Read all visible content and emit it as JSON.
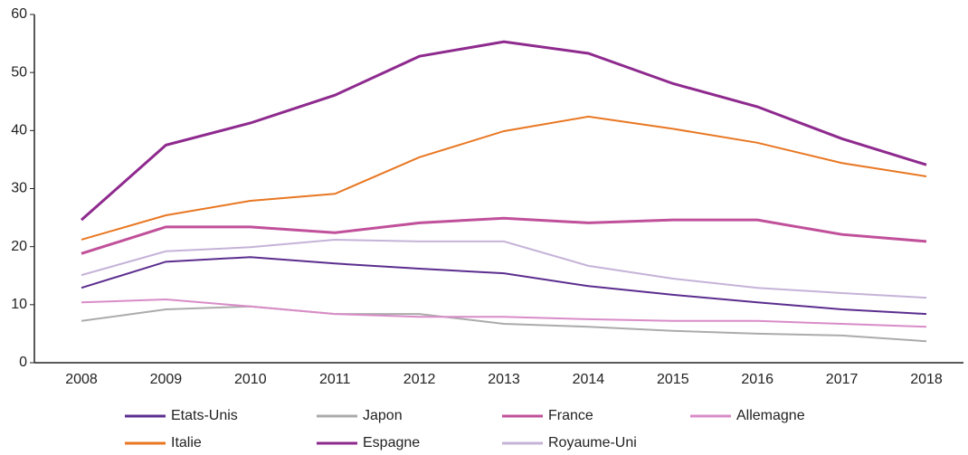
{
  "chart_data": {
    "type": "line",
    "categories": [
      "2008",
      "2009",
      "2010",
      "2011",
      "2012",
      "2013",
      "2014",
      "2015",
      "2016",
      "2017",
      "2018"
    ],
    "ylim": [
      0,
      60
    ],
    "yticks": [
      0,
      10,
      20,
      30,
      40,
      50,
      60
    ],
    "grid": false,
    "legend": "bottom",
    "series": [
      {
        "name": "Etats-Unis",
        "color": "#5b2d8e",
        "values": [
          12.9,
          17.4,
          18.2,
          17.1,
          16.2,
          15.4,
          13.2,
          11.7,
          10.4,
          9.2,
          8.4
        ]
      },
      {
        "name": "Japon",
        "color": "#ababab",
        "values": [
          7.2,
          9.2,
          9.7,
          8.4,
          8.4,
          6.7,
          6.2,
          5.5,
          5.0,
          4.7,
          3.7
        ]
      },
      {
        "name": "France",
        "color": "#c0509a",
        "values": [
          18.8,
          23.4,
          23.4,
          22.4,
          24.1,
          24.9,
          24.1,
          24.6,
          24.6,
          22.1,
          20.9
        ]
      },
      {
        "name": "Allemagne",
        "color": "#d98cc8",
        "values": [
          10.4,
          10.9,
          9.7,
          8.4,
          7.9,
          7.9,
          7.5,
          7.2,
          7.2,
          6.7,
          6.2
        ]
      },
      {
        "name": "Italie",
        "color": "#e87722",
        "values": [
          21.2,
          25.4,
          27.9,
          29.1,
          35.4,
          39.9,
          42.4,
          40.3,
          37.9,
          34.4,
          32.1
        ]
      },
      {
        "name": "Espagne",
        "color": "#8e2a8e",
        "values": [
          24.6,
          37.5,
          41.3,
          46.1,
          52.8,
          55.3,
          53.3,
          48.1,
          44.1,
          38.6,
          34.1
        ]
      },
      {
        "name": "Royaume-Uni",
        "color": "#c5b3d8",
        "values": [
          15.1,
          19.2,
          19.9,
          21.2,
          20.9,
          20.9,
          16.7,
          14.5,
          12.9,
          12.0,
          11.2
        ]
      }
    ]
  }
}
